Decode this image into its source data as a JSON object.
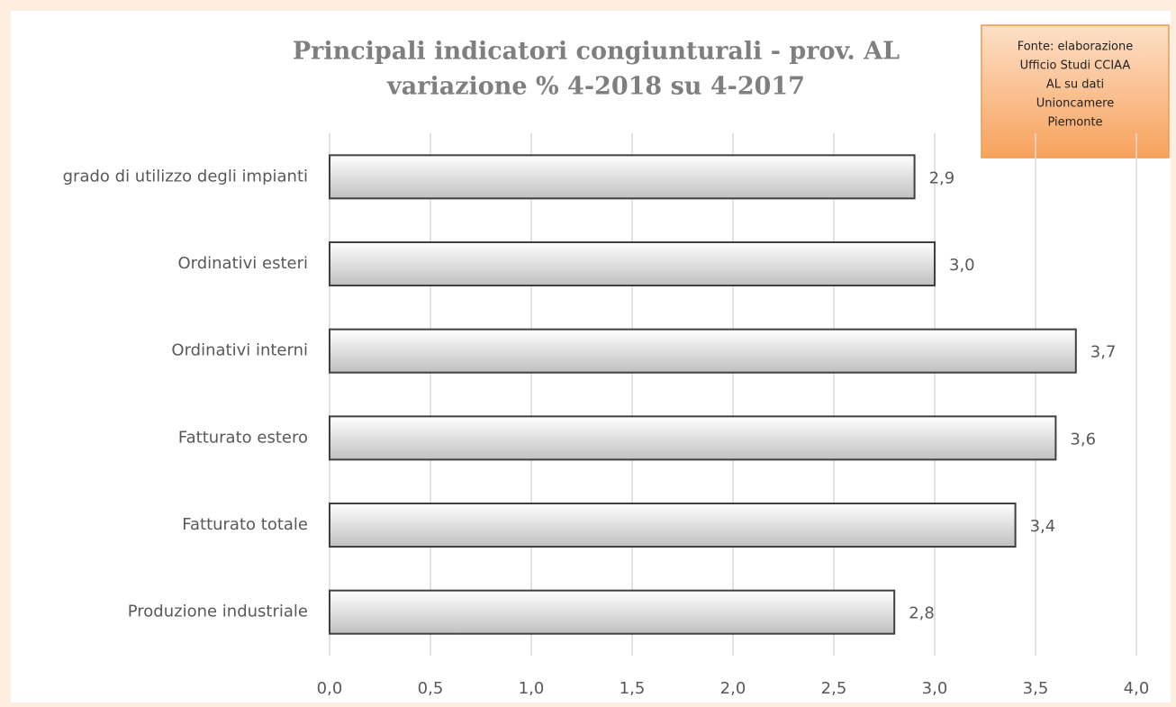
{
  "chart_data": {
    "type": "barh",
    "title": "Principali indicatori congiunturali - prov. AL",
    "subtitle": "variazione % 4-2018 su 4-2017",
    "annotation": [
      "Fonte: elaborazione",
      "Ufficio Studi CCIAA",
      "AL su dati",
      "Unioncamere",
      "Piemonte"
    ],
    "categories": [
      "grado di utilizzo degli impianti",
      "Ordinativi esteri",
      "Ordinativi interni",
      "Fatturato estero",
      "Fatturato totale",
      "Produzione industriale"
    ],
    "values": [
      2.9,
      3.0,
      3.7,
      3.6,
      3.4,
      2.8
    ],
    "value_labels": [
      "2,9",
      "3,0",
      "3,7",
      "3,6",
      "3,4",
      "2,8"
    ],
    "color": "#c0c0c0",
    "xlim": [
      0,
      4
    ],
    "xticks": [
      {
        "value": 0,
        "label": "0,0"
      },
      {
        "value": 0.5,
        "label": "0,5"
      },
      {
        "value": 1,
        "label": "1,0"
      },
      {
        "value": 1.5,
        "label": "1,5"
      },
      {
        "value": 2,
        "label": "2,0"
      },
      {
        "value": 2.5,
        "label": "2,5"
      },
      {
        "value": 3,
        "label": "3,0"
      },
      {
        "value": 3.5,
        "label": "3,5"
      },
      {
        "value": 4,
        "label": "4,0"
      }
    ],
    "grid": true
  }
}
